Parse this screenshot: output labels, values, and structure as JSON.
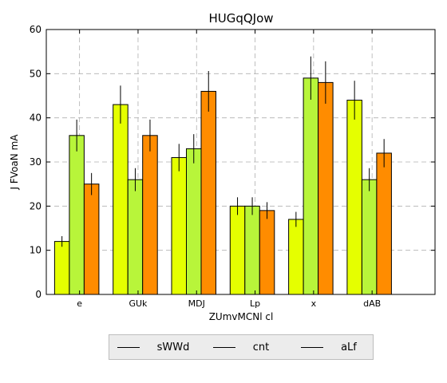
{
  "chart_data": {
    "type": "bar",
    "title": "HUGqQJow",
    "xlabel": "ZUmvMCNl cl",
    "ylabel": "J FVoaN mA",
    "categories": [
      "e",
      "GUk",
      "MDJ",
      "Lp",
      "x",
      "dAB"
    ],
    "ylim": [
      0,
      60
    ],
    "yticks": [
      0,
      10,
      20,
      30,
      40,
      50,
      60
    ],
    "grid": true,
    "legend_position": "bottom",
    "series": [
      {
        "name": "sWWd",
        "color": "#e5ff00",
        "values": [
          12,
          43,
          31,
          20,
          17,
          44
        ],
        "errors": [
          1.2,
          4.3,
          3.1,
          2.0,
          1.7,
          4.4
        ]
      },
      {
        "name": "cnt",
        "color": "#b8f53a",
        "values": [
          36,
          26,
          33,
          20,
          49,
          26
        ],
        "errors": [
          3.6,
          2.6,
          3.3,
          2.0,
          4.9,
          2.6
        ]
      },
      {
        "name": "aLf",
        "color": "#ff8c00",
        "values": [
          25,
          36,
          46,
          19,
          48,
          32
        ],
        "errors": [
          2.5,
          3.6,
          4.6,
          1.9,
          4.8,
          3.2
        ]
      }
    ]
  }
}
